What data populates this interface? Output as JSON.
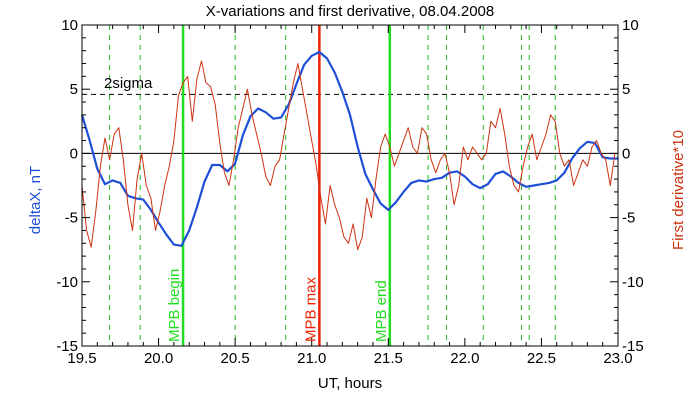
{
  "chart_data": {
    "type": "line",
    "title": "X-variations and first derivative, 08.04.2008",
    "xlabel": "UT, hours",
    "ylabel_left": "deltaX, nT",
    "ylabel_right": "First derivative*10",
    "xlim": [
      19.5,
      23.0
    ],
    "ylim": [
      -15,
      10
    ],
    "ylim_right": [
      -15,
      10
    ],
    "xticks": [
      "19.5",
      "20.0",
      "20.5",
      "21.0",
      "21.5",
      "22.0",
      "22.5",
      "23.0"
    ],
    "yticks": [
      "-15",
      "-10",
      "-5",
      "0",
      "5",
      "10"
    ],
    "threshold": {
      "label": "2sigma",
      "value": 4.6
    },
    "zero_line": 0,
    "colors": {
      "deltaX": "#1f4fd6",
      "derivative": "#cc3311",
      "mpb_begin_end": "#22dd22",
      "mpb_max": "#ee2200",
      "dashed": "#22bb22"
    },
    "markers": [
      {
        "label": "MPB begin",
        "x": 20.16,
        "color": "#22dd22"
      },
      {
        "label": "MPB max",
        "x": 21.05,
        "color": "#ee2200"
      },
      {
        "label": "MPB end",
        "x": 21.51,
        "color": "#22dd22"
      }
    ],
    "dashed_x": [
      19.68,
      19.88,
      20.5,
      20.83,
      21.76,
      21.88,
      22.12,
      22.37,
      22.42,
      22.59
    ],
    "series": [
      {
        "name": "deltaX",
        "axis": "left",
        "x": [
          19.5,
          19.55,
          19.6,
          19.65,
          19.7,
          19.75,
          19.8,
          19.85,
          19.9,
          19.95,
          20.0,
          20.05,
          20.1,
          20.15,
          20.2,
          20.25,
          20.3,
          20.35,
          20.4,
          20.45,
          20.5,
          20.55,
          20.6,
          20.65,
          20.7,
          20.75,
          20.8,
          20.85,
          20.9,
          20.95,
          21.0,
          21.05,
          21.1,
          21.15,
          21.2,
          21.25,
          21.3,
          21.35,
          21.4,
          21.45,
          21.5,
          21.55,
          21.6,
          21.65,
          21.7,
          21.75,
          21.8,
          21.85,
          21.9,
          21.95,
          22.0,
          22.05,
          22.1,
          22.15,
          22.2,
          22.25,
          22.3,
          22.35,
          22.4,
          22.45,
          22.5,
          22.55,
          22.6,
          22.65,
          22.7,
          22.75,
          22.8,
          22.85,
          22.9,
          22.95,
          23.0
        ],
        "values": [
          3.0,
          1.0,
          -1.2,
          -2.4,
          -2.1,
          -2.3,
          -3.3,
          -3.5,
          -3.6,
          -4.4,
          -5.4,
          -6.3,
          -7.1,
          -7.2,
          -6.0,
          -4.2,
          -2.2,
          -0.9,
          -0.9,
          -1.4,
          -0.8,
          1.4,
          2.9,
          3.5,
          3.2,
          2.7,
          2.8,
          3.8,
          5.4,
          6.9,
          7.6,
          7.9,
          7.4,
          6.3,
          4.8,
          3.0,
          0.5,
          -1.6,
          -2.8,
          -3.9,
          -4.4,
          -3.8,
          -3.0,
          -2.3,
          -2.1,
          -2.2,
          -2.0,
          -1.9,
          -1.5,
          -1.4,
          -1.8,
          -2.4,
          -2.7,
          -2.4,
          -1.6,
          -1.4,
          -1.8,
          -2.3,
          -2.6,
          -2.5,
          -2.4,
          -2.3,
          -2.1,
          -1.5,
          -0.4,
          0.4,
          0.9,
          0.8,
          -0.3,
          -0.4,
          -0.4
        ]
      },
      {
        "name": "First derivative*10",
        "axis": "right",
        "x": [
          19.5,
          19.53,
          19.56,
          19.59,
          19.62,
          19.65,
          19.68,
          19.71,
          19.74,
          19.77,
          19.8,
          19.83,
          19.86,
          19.89,
          19.92,
          19.95,
          19.98,
          20.01,
          20.04,
          20.07,
          20.1,
          20.13,
          20.16,
          20.19,
          20.22,
          20.25,
          20.28,
          20.31,
          20.34,
          20.37,
          20.4,
          20.43,
          20.46,
          20.49,
          20.52,
          20.55,
          20.58,
          20.61,
          20.64,
          20.67,
          20.7,
          20.73,
          20.76,
          20.79,
          20.82,
          20.85,
          20.88,
          20.91,
          20.94,
          20.97,
          21.0,
          21.03,
          21.06,
          21.09,
          21.12,
          21.15,
          21.18,
          21.21,
          21.24,
          21.27,
          21.3,
          21.33,
          21.36,
          21.39,
          21.42,
          21.45,
          21.48,
          21.51,
          21.54,
          21.57,
          21.6,
          21.63,
          21.66,
          21.69,
          21.72,
          21.75,
          21.78,
          21.81,
          21.84,
          21.87,
          21.9,
          21.93,
          21.96,
          21.99,
          22.02,
          22.05,
          22.08,
          22.11,
          22.14,
          22.17,
          22.2,
          22.23,
          22.26,
          22.29,
          22.32,
          22.35,
          22.38,
          22.41,
          22.44,
          22.47,
          22.5,
          22.53,
          22.56,
          22.59,
          22.62,
          22.65,
          22.68,
          22.71,
          22.74,
          22.77,
          22.8,
          22.83,
          22.86,
          22.89,
          22.92,
          22.95,
          22.98
        ],
        "values": [
          -2.5,
          -6.0,
          -7.3,
          -4.5,
          -1.0,
          1.2,
          -0.5,
          1.5,
          2.0,
          -0.5,
          -4.0,
          -6.0,
          -2.0,
          0.0,
          -2.5,
          -3.5,
          -6.0,
          -4.5,
          -2.5,
          -1.0,
          1.0,
          4.5,
          5.5,
          6.0,
          2.5,
          5.8,
          7.2,
          5.5,
          5.2,
          3.8,
          0.8,
          -1.5,
          -2.5,
          -0.5,
          2.0,
          3.5,
          5.0,
          3.0,
          1.5,
          0.0,
          -1.8,
          -2.5,
          -1.0,
          -0.5,
          1.5,
          3.5,
          5.5,
          7.0,
          5.0,
          3.0,
          1.0,
          -1.0,
          -3.5,
          -5.5,
          -2.5,
          -4.0,
          -5.0,
          -6.5,
          -7.0,
          -5.5,
          -7.5,
          -6.5,
          -3.5,
          -5.0,
          -2.0,
          0.5,
          1.5,
          0.5,
          -1.0,
          0.0,
          1.0,
          2.0,
          0.5,
          0.0,
          2.0,
          1.5,
          -0.5,
          -1.5,
          -0.5,
          0.0,
          -1.5,
          -4.0,
          -2.5,
          0.5,
          -0.5,
          0.5,
          0.0,
          -0.5,
          0.0,
          2.5,
          2.0,
          3.5,
          1.5,
          -1.0,
          -2.5,
          -3.0,
          -1.0,
          0.5,
          1.5,
          -0.5,
          0.5,
          1.5,
          3.0,
          2.5,
          0.0,
          -1.0,
          -0.5,
          -2.5,
          -1.5,
          -0.5,
          -1.0,
          0.5,
          1.0,
          0.0,
          -0.5,
          -2.5,
          0.0
        ]
      }
    ]
  }
}
